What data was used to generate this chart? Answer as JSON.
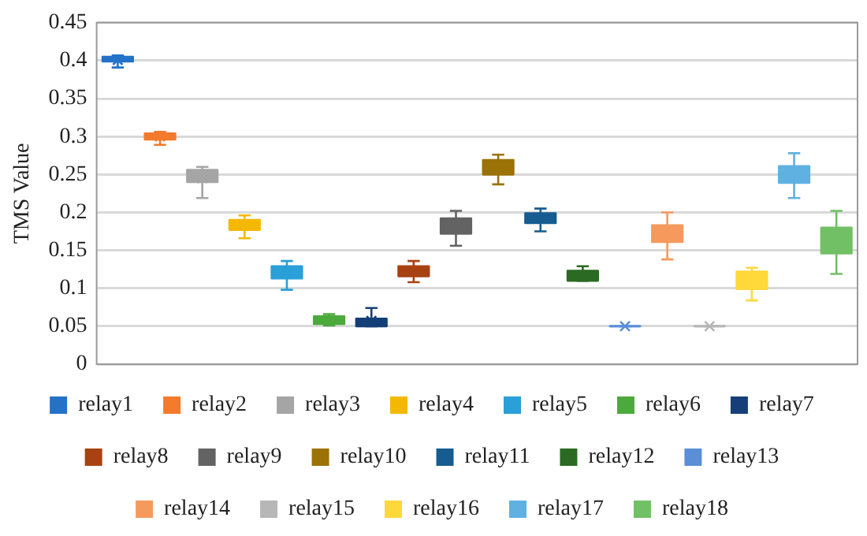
{
  "chart_data": {
    "type": "box",
    "ylabel": "TMS Value",
    "categories": [
      null
    ],
    "ylim": [
      0,
      0.45
    ],
    "yticks": [
      0,
      0.05,
      0.1,
      0.15,
      0.2,
      0.25,
      0.3,
      0.35,
      0.4,
      0.45
    ],
    "grid": "y",
    "legend": "bottom",
    "tick_labels": "y",
    "series": [
      {
        "name": "relay1",
        "color": "#2472c8",
        "boxes": [
          {
            "low": 0.391,
            "q1": 0.399,
            "median": 0.402,
            "q3": 0.405,
            "high": 0.407,
            "mean": 0.401
          }
        ]
      },
      {
        "name": "relay2",
        "color": "#f47a2c",
        "boxes": [
          {
            "low": 0.289,
            "q1": 0.296,
            "median": 0.3,
            "q3": 0.304,
            "high": 0.306,
            "mean": 0.3
          }
        ]
      },
      {
        "name": "relay3",
        "color": "#a5a5a5",
        "boxes": [
          {
            "low": 0.219,
            "q1": 0.24,
            "median": 0.248,
            "q3": 0.256,
            "high": 0.26,
            "mean": 0.245
          }
        ]
      },
      {
        "name": "relay4",
        "color": "#f5b800",
        "boxes": [
          {
            "low": 0.166,
            "q1": 0.177,
            "median": 0.183,
            "q3": 0.19,
            "high": 0.196,
            "mean": 0.183
          }
        ]
      },
      {
        "name": "relay5",
        "color": "#2a9fd8",
        "boxes": [
          {
            "low": 0.098,
            "q1": 0.113,
            "median": 0.12,
            "q3": 0.129,
            "high": 0.136,
            "mean": 0.12
          }
        ]
      },
      {
        "name": "relay6",
        "color": "#4caa3c",
        "boxes": [
          {
            "low": 0.051,
            "q1": 0.053,
            "median": 0.058,
            "q3": 0.063,
            "high": 0.066,
            "mean": 0.058
          }
        ]
      },
      {
        "name": "relay7",
        "color": "#153f78",
        "boxes": [
          {
            "low": 0.05,
            "q1": 0.05,
            "median": 0.055,
            "q3": 0.06,
            "high": 0.074,
            "mean": 0.057
          }
        ]
      },
      {
        "name": "relay8",
        "color": "#a84212",
        "boxes": [
          {
            "low": 0.108,
            "q1": 0.116,
            "median": 0.122,
            "q3": 0.129,
            "high": 0.136,
            "mean": 0.122
          }
        ]
      },
      {
        "name": "relay9",
        "color": "#636363",
        "boxes": [
          {
            "low": 0.156,
            "q1": 0.172,
            "median": 0.183,
            "q3": 0.192,
            "high": 0.202,
            "mean": 0.183
          }
        ]
      },
      {
        "name": "relay10",
        "color": "#9a7206",
        "boxes": [
          {
            "low": 0.237,
            "q1": 0.25,
            "median": 0.261,
            "q3": 0.269,
            "high": 0.276,
            "mean": 0.26
          }
        ]
      },
      {
        "name": "relay11",
        "color": "#165c91",
        "boxes": [
          {
            "low": 0.175,
            "q1": 0.186,
            "median": 0.193,
            "q3": 0.199,
            "high": 0.205,
            "mean": 0.192
          }
        ]
      },
      {
        "name": "relay12",
        "color": "#2b6a23",
        "boxes": [
          {
            "low": 0.11,
            "q1": 0.11,
            "median": 0.117,
            "q3": 0.123,
            "high": 0.129,
            "mean": 0.116
          }
        ]
      },
      {
        "name": "relay13",
        "color": "#5a8fd8",
        "boxes": [
          {
            "low": 0.05,
            "q1": 0.05,
            "median": 0.05,
            "q3": 0.05,
            "high": 0.05,
            "mean": 0.05
          }
        ]
      },
      {
        "name": "relay14",
        "color": "#f59a5c",
        "boxes": [
          {
            "low": 0.138,
            "q1": 0.161,
            "median": 0.172,
            "q3": 0.183,
            "high": 0.2,
            "mean": 0.172
          }
        ]
      },
      {
        "name": "relay15",
        "color": "#b7b7b7",
        "boxes": [
          {
            "low": 0.05,
            "q1": 0.05,
            "median": 0.05,
            "q3": 0.05,
            "high": 0.05,
            "mean": 0.05
          }
        ]
      },
      {
        "name": "relay16",
        "color": "#ffd83a",
        "boxes": [
          {
            "low": 0.084,
            "q1": 0.099,
            "median": 0.112,
            "q3": 0.122,
            "high": 0.127,
            "mean": 0.11
          }
        ]
      },
      {
        "name": "relay17",
        "color": "#5fb1e2",
        "boxes": [
          {
            "low": 0.219,
            "q1": 0.239,
            "median": 0.251,
            "q3": 0.261,
            "high": 0.278,
            "mean": 0.25
          }
        ]
      },
      {
        "name": "relay18",
        "color": "#72c065",
        "boxes": [
          {
            "low": 0.119,
            "q1": 0.146,
            "median": 0.165,
            "q3": 0.18,
            "high": 0.202,
            "mean": 0.163
          }
        ]
      }
    ]
  }
}
